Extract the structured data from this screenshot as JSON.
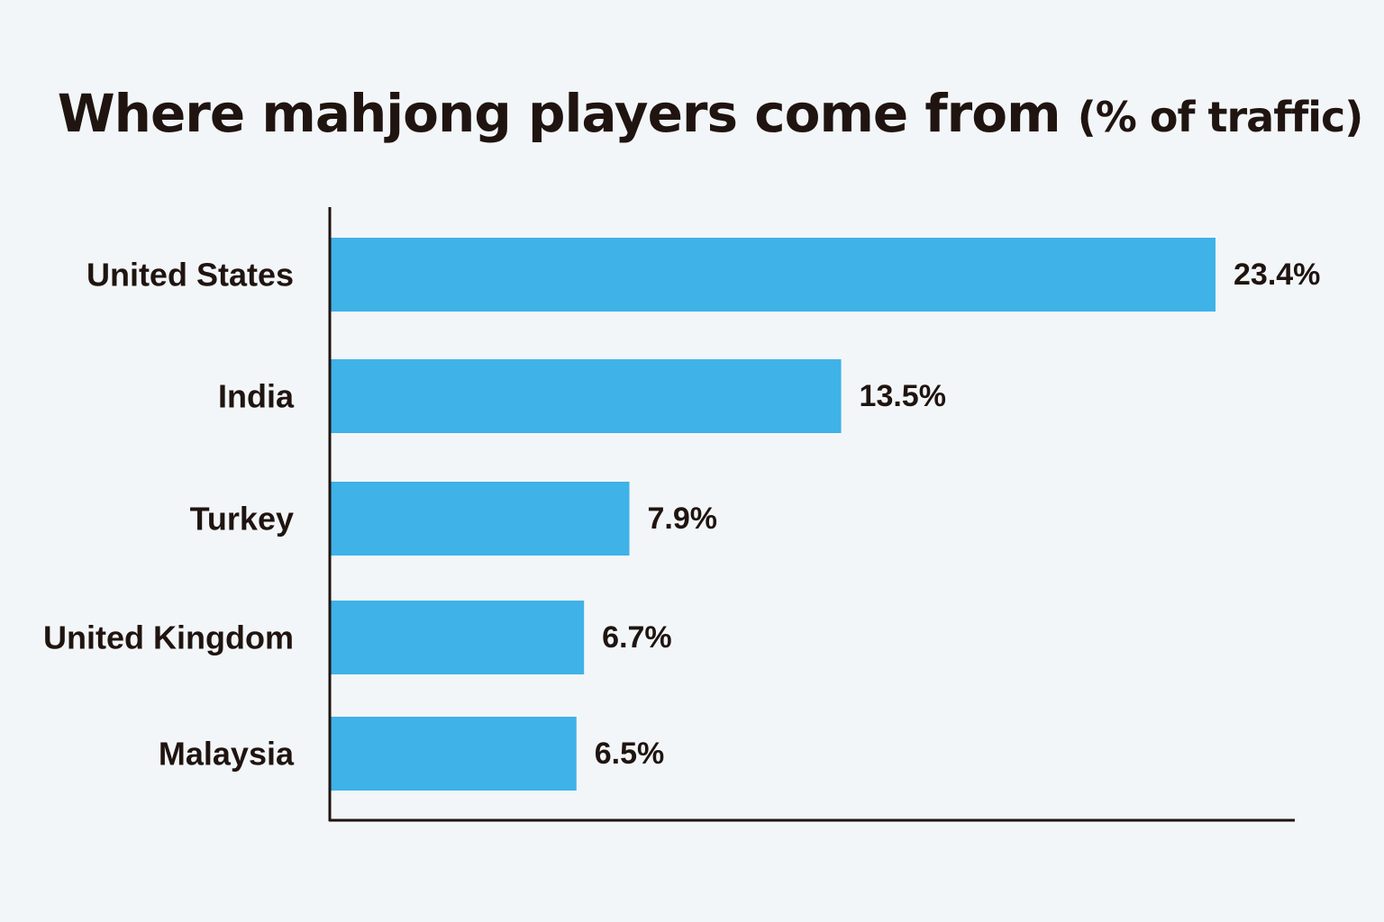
{
  "chart_data": {
    "type": "bar",
    "orientation": "horizontal",
    "title": "Where mahjong players come from",
    "title_suffix": "(% of traffic)",
    "categories": [
      "United States",
      "India",
      "Turkey",
      "United Kingdom",
      "Malaysia"
    ],
    "values": [
      23.4,
      13.5,
      7.9,
      6.7,
      6.5
    ],
    "value_labels": [
      "23.4%",
      "13.5%",
      "7.9%",
      "6.7%",
      "6.5%"
    ],
    "xlabel": "",
    "ylabel": "",
    "xlim": [
      0,
      25.5
    ],
    "grid": false,
    "legend": "none",
    "bar_color": "#3fb2e8",
    "axis_color": "#1f1410"
  }
}
